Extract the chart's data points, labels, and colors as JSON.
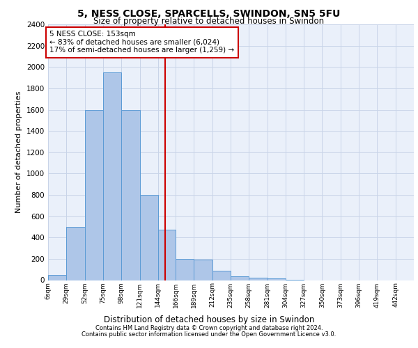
{
  "title_line1": "5, NESS CLOSE, SPARCELLS, SWINDON, SN5 5FU",
  "title_line2": "Size of property relative to detached houses in Swindon",
  "xlabel": "Distribution of detached houses by size in Swindon",
  "ylabel": "Number of detached properties",
  "footer_line1": "Contains HM Land Registry data © Crown copyright and database right 2024.",
  "footer_line2": "Contains public sector information licensed under the Open Government Licence v3.0.",
  "annotation_line1": "5 NESS CLOSE: 153sqm",
  "annotation_line2": "← 83% of detached houses are smaller (6,024)",
  "annotation_line3": "17% of semi-detached houses are larger (1,259) →",
  "vline_x": 153,
  "bar_edges": [
    6,
    29,
    52,
    75,
    98,
    121,
    144,
    166,
    189,
    212,
    235,
    258,
    281,
    304,
    327,
    350,
    373,
    396,
    419,
    442,
    465
  ],
  "bar_heights": [
    50,
    500,
    1600,
    1950,
    1600,
    800,
    475,
    200,
    195,
    85,
    35,
    25,
    15,
    5,
    0,
    0,
    0,
    0,
    0,
    0
  ],
  "bar_color": "#aec6e8",
  "bar_edge_color": "#5b9bd5",
  "vline_color": "#cc0000",
  "annotation_box_color": "#cc0000",
  "grid_color": "#c8d4e8",
  "ylim": [
    0,
    2400
  ],
  "yticks": [
    0,
    200,
    400,
    600,
    800,
    1000,
    1200,
    1400,
    1600,
    1800,
    2000,
    2200,
    2400
  ],
  "bg_color": "#eaf0fa"
}
